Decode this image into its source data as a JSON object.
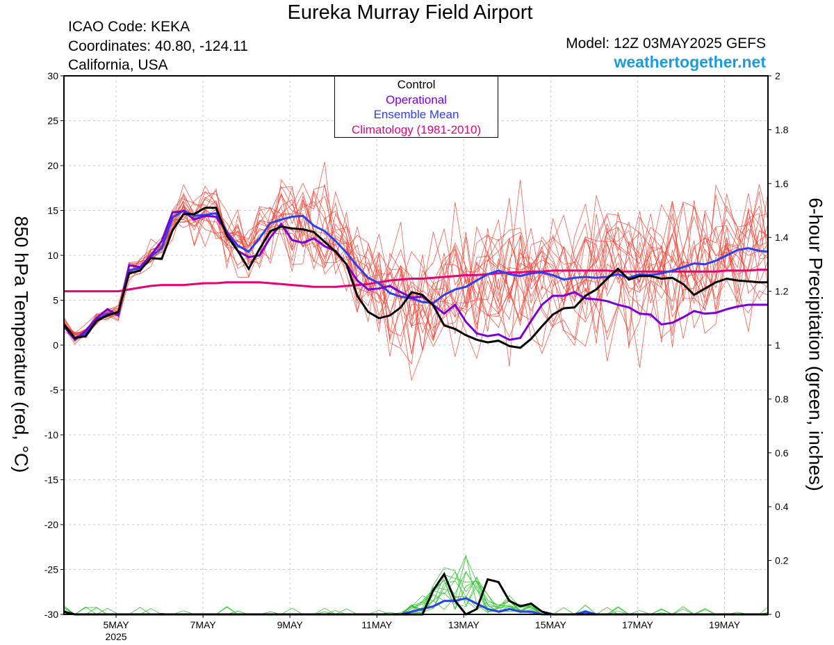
{
  "header": {
    "title": "Eureka Murray Field Airport",
    "icao": "ICAO Code: KEKA",
    "coordinates": "Coordinates: 40.80, -124.11",
    "region": "California, USA",
    "model": "Model: 12Z 03MAY2025 GEFS",
    "site": "weathertogether.net"
  },
  "colors": {
    "members": "#f04030",
    "control": "#000000",
    "operational": "#7a00d6",
    "ensemble_mean": "#2b3ff0",
    "climatology": "#e6007a",
    "precip_members": "#2ec82e",
    "site": "#1a9be0"
  },
  "chart_data": {
    "type": "line",
    "x_unit": "days since 03MAY2025 12Z",
    "xlim": [
      0.3,
      16.5
    ],
    "x_ticks": [
      {
        "x": 1.5,
        "label": "5MAY",
        "sub": "2025"
      },
      {
        "x": 3.5,
        "label": "7MAY",
        "sub": ""
      },
      {
        "x": 5.5,
        "label": "9MAY",
        "sub": ""
      },
      {
        "x": 7.5,
        "label": "11MAY",
        "sub": ""
      },
      {
        "x": 9.5,
        "label": "13MAY",
        "sub": ""
      },
      {
        "x": 11.5,
        "label": "15MAY",
        "sub": ""
      },
      {
        "x": 13.5,
        "label": "17MAY",
        "sub": ""
      },
      {
        "x": 15.5,
        "label": "19MAY",
        "sub": ""
      }
    ],
    "y_left": {
      "label": "850 hPa Temperature (red, °C)",
      "lim": [
        -30,
        30
      ],
      "ticks": [
        "30",
        "25",
        "20",
        "15",
        "10",
        "5",
        "0",
        "-5",
        "-10",
        "-15",
        "-20",
        "-25",
        "-30"
      ]
    },
    "y_right": {
      "label": "6-hour Precipitation (green, inches)",
      "lim": [
        0,
        2
      ],
      "ticks": [
        "2",
        "1.8",
        "1.6",
        "1.4",
        "1.2",
        "1",
        "0.8",
        "0.6",
        "0.4",
        "0.2",
        "0"
      ]
    },
    "legend": [
      "Control",
      "Operational",
      "Ensemble Mean",
      "Climatology (1981-2010)"
    ],
    "temperature": {
      "x": [
        0.3,
        0.55,
        0.8,
        1.05,
        1.3,
        1.55,
        1.8,
        2.05,
        2.3,
        2.55,
        2.8,
        3.05,
        3.3,
        3.55,
        3.8,
        4.05,
        4.3,
        4.55,
        4.8,
        5.05,
        5.3,
        5.55,
        5.8,
        6.05,
        6.3,
        6.55,
        6.8,
        7.05,
        7.3,
        7.55,
        7.8,
        8.05,
        8.3,
        8.55,
        8.8,
        9.05,
        9.3,
        9.55,
        9.8,
        10.05,
        10.3,
        10.55,
        10.8,
        11.05,
        11.3,
        11.55,
        11.8,
        12.05,
        12.3,
        12.55,
        12.8,
        13.05,
        13.3,
        13.55,
        13.8,
        14.05,
        14.3,
        14.55,
        14.8,
        15.05,
        15.3,
        15.55,
        15.8,
        16.05,
        16.3,
        16.5
      ],
      "control": [
        2.3,
        0.8,
        1.0,
        2.7,
        3.3,
        3.7,
        8.0,
        8.3,
        9.7,
        9.6,
        12.8,
        14.6,
        14.6,
        15.3,
        15.3,
        12.2,
        10.5,
        8.5,
        10.7,
        12.7,
        13.2,
        13.0,
        12.9,
        12.6,
        11.5,
        10.4,
        9.0,
        5.5,
        3.7,
        3.0,
        3.3,
        4.2,
        5.9,
        5.6,
        4.4,
        2.2,
        1.8,
        1.1,
        0.6,
        0.3,
        0.5,
        -0.1,
        -0.3,
        0.7,
        2.1,
        3.4,
        4.1,
        4.2,
        5.5,
        6.2,
        7.4,
        8.5,
        7.3,
        7.7,
        7.7,
        7.4,
        7.5,
        6.8,
        5.6,
        6.3,
        7.0,
        7.4,
        7.2,
        7.1,
        7.0,
        7.0
      ],
      "operational": [
        2.1,
        0.6,
        1.6,
        3.0,
        4.0,
        3.3,
        8.9,
        8.7,
        10.0,
        11.6,
        14.8,
        14.9,
        14.0,
        14.4,
        14.3,
        12.6,
        10.5,
        9.8,
        10.0,
        12.0,
        13.5,
        11.7,
        11.4,
        11.9,
        11.0,
        10.5,
        9.0,
        7.2,
        6.2,
        6.3,
        6.6,
        5.9,
        5.3,
        5.4,
        4.5,
        3.5,
        4.5,
        2.6,
        1.3,
        1.0,
        1.2,
        0.6,
        0.8,
        2.7,
        4.5,
        5.5,
        5.5,
        5.9,
        5.2,
        5.1,
        4.9,
        4.5,
        4.2,
        3.5,
        3.4,
        2.3,
        2.5,
        3.1,
        3.8,
        3.5,
        3.6,
        4.0,
        4.3,
        4.5,
        4.5,
        4.5
      ],
      "ensemble_mean": [
        2.2,
        0.8,
        1.3,
        2.8,
        3.5,
        3.6,
        8.3,
        8.6,
        9.9,
        10.8,
        14.2,
        15.0,
        14.4,
        14.5,
        14.7,
        12.6,
        11.1,
        10.4,
        11.9,
        13.6,
        14.0,
        14.3,
        14.4,
        13.3,
        12.7,
        11.6,
        10.3,
        8.8,
        7.5,
        6.9,
        5.8,
        5.4,
        5.2,
        4.8,
        4.7,
        5.6,
        6.2,
        6.5,
        7.2,
        7.9,
        8.3,
        7.9,
        7.7,
        8.0,
        8.1,
        7.8,
        7.3,
        7.5,
        7.6,
        7.5,
        7.6,
        7.9,
        7.5,
        7.9,
        7.8,
        8.0,
        8.3,
        8.7,
        9.1,
        9.0,
        9.4,
        10.0,
        10.6,
        10.8,
        10.5,
        10.4
      ],
      "climatology": [
        6.0,
        6.0,
        6.0,
        6.0,
        6.0,
        6.0,
        6.2,
        6.4,
        6.6,
        6.7,
        6.7,
        6.7,
        6.8,
        6.9,
        6.9,
        7.0,
        7.0,
        7.0,
        7.0,
        6.9,
        6.8,
        6.7,
        6.6,
        6.5,
        6.5,
        6.5,
        6.6,
        6.7,
        6.8,
        7.0,
        7.2,
        7.3,
        7.4,
        7.4,
        7.5,
        7.6,
        7.7,
        7.8,
        7.8,
        7.9,
        8.0,
        8.1,
        8.1,
        8.2,
        8.2,
        8.3,
        8.3,
        8.3,
        8.3,
        8.3,
        8.3,
        8.2,
        8.2,
        8.2,
        8.2,
        8.2,
        8.2,
        8.2,
        8.2,
        8.2,
        8.2,
        8.3,
        8.3,
        8.3,
        8.4,
        8.4
      ]
    },
    "precipitation": {
      "x": [
        0.3,
        0.55,
        0.8,
        1.05,
        1.3,
        1.55,
        1.8,
        2.05,
        2.3,
        2.55,
        2.8,
        3.05,
        3.3,
        3.55,
        3.8,
        4.05,
        4.3,
        4.55,
        4.8,
        5.05,
        5.3,
        5.55,
        5.8,
        6.05,
        6.3,
        6.55,
        6.8,
        7.05,
        7.3,
        7.55,
        7.8,
        8.05,
        8.3,
        8.55,
        8.8,
        9.05,
        9.3,
        9.55,
        9.8,
        10.05,
        10.3,
        10.55,
        10.8,
        11.05,
        11.3,
        11.55,
        11.8,
        12.05,
        12.3,
        12.55,
        12.8,
        13.05,
        13.3,
        13.55,
        13.8,
        14.05,
        14.3,
        14.55,
        14.8,
        15.05,
        15.3,
        15.55,
        15.8,
        16.05,
        16.3,
        16.5
      ],
      "control": [
        0.01,
        0.0,
        0.0,
        0.0,
        0.0,
        0.0,
        0.0,
        0.0,
        0.0,
        0.0,
        0.0,
        0.0,
        0.0,
        0.0,
        0.0,
        0.0,
        0.0,
        0.0,
        0.0,
        0.0,
        0.0,
        0.0,
        0.0,
        0.0,
        0.0,
        0.0,
        0.0,
        0.0,
        0.0,
        0.0,
        0.0,
        0.0,
        0.0,
        0.0,
        0.09,
        0.15,
        0.05,
        0.0,
        0.02,
        0.13,
        0.12,
        0.05,
        0.03,
        0.04,
        0.01,
        0.0,
        0.0,
        0.0,
        0.0,
        0.0,
        0.0,
        0.0,
        0.0,
        0.0,
        0.0,
        0.0,
        0.0,
        0.0,
        0.0,
        0.0,
        0.0,
        0.0,
        0.0,
        0.0,
        0.0,
        0.0
      ],
      "ensemble_mean": [
        0.01,
        0.0,
        0.0,
        0.0,
        0.0,
        0.0,
        0.0,
        0.0,
        0.0,
        0.0,
        0.0,
        0.0,
        0.0,
        0.0,
        0.0,
        0.0,
        0.0,
        0.0,
        0.0,
        0.0,
        0.0,
        0.0,
        0.0,
        0.0,
        0.0,
        0.0,
        0.0,
        0.0,
        0.0,
        0.0,
        0.0,
        0.0,
        0.01,
        0.02,
        0.03,
        0.05,
        0.05,
        0.06,
        0.04,
        0.02,
        0.01,
        0.02,
        0.01,
        0.01,
        0.0,
        0.0,
        0.0,
        0.0,
        0.01,
        0.0,
        0.0,
        0.0,
        0.0,
        0.0,
        0.0,
        0.0,
        0.0,
        0.0,
        0.0,
        0.0,
        0.0,
        0.0,
        0.0,
        0.0,
        0.0,
        0.0
      ]
    }
  }
}
